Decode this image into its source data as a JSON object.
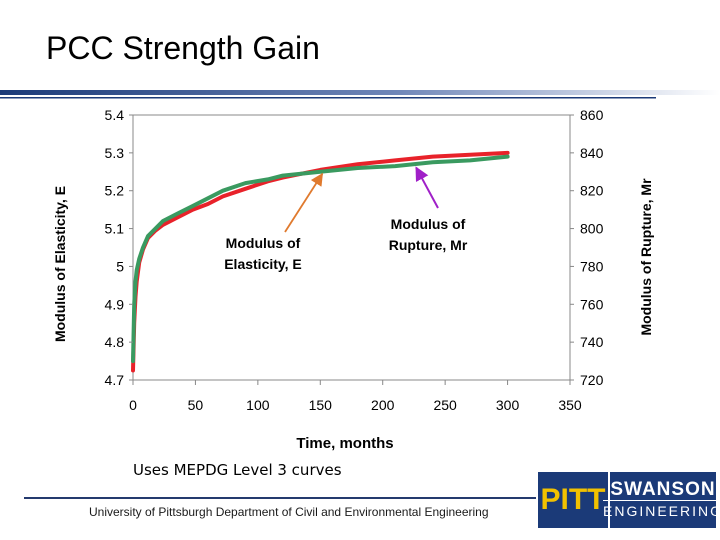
{
  "slide": {
    "title": "PCC Strength Gain",
    "footnote": "Uses MEPDG Level 3 curves",
    "footer": "University of Pittsburgh Department of Civil and Environmental Engineering"
  },
  "logo": {
    "left": "PITT",
    "top_right": "SWANSON",
    "bottom_right": "ENGINEERING"
  },
  "colors": {
    "rupture_series": "#e8222a",
    "elasticity_series": "#3a9a60",
    "elasticity_arrow": "#e07a2e",
    "rupture_arrow": "#a020c8",
    "logo_blue": "#1b3a78",
    "logo_gold": "#f2c100"
  },
  "chart_data": {
    "type": "line",
    "xlabel": "Time, months",
    "ylabel_left": "Modulus of Elasticity, E",
    "ylabel_right": "Modulus of Rupture, Mr",
    "xlim": [
      0,
      350
    ],
    "ylim_left": [
      4.7,
      5.4
    ],
    "ylim_right": [
      720,
      860
    ],
    "x_ticks": [
      "0",
      "50",
      "100",
      "150",
      "200",
      "250",
      "300",
      "350"
    ],
    "y_left_ticks": [
      "5.4",
      "5.3",
      "5.2",
      "5.1",
      "5",
      "4.9",
      "4.8",
      "4.7"
    ],
    "y_right_ticks": [
      "860",
      "840",
      "820",
      "800",
      "780",
      "760",
      "740",
      "720"
    ],
    "series": [
      {
        "name": "Modulus of Rupture, Mr",
        "axis": "right",
        "x": [
          0,
          1,
          2,
          3,
          5,
          8,
          12,
          18,
          24,
          36,
          48,
          60,
          72,
          90,
          108,
          120,
          150,
          180,
          210,
          240,
          270,
          300
        ],
        "y": [
          725,
          750,
          764,
          772,
          782,
          789,
          795,
          799,
          802,
          806,
          810,
          813,
          817,
          821,
          825,
          827,
          831,
          834,
          836,
          838,
          839,
          840
        ]
      },
      {
        "name": "Modulus of Elasticity, E",
        "axis": "left",
        "x": [
          0,
          1,
          2,
          3,
          5,
          8,
          12,
          18,
          24,
          36,
          48,
          60,
          72,
          90,
          108,
          120,
          150,
          180,
          210,
          240,
          270,
          300
        ],
        "y": [
          4.75,
          4.9,
          4.96,
          4.99,
          5.02,
          5.05,
          5.08,
          5.1,
          5.12,
          5.14,
          5.16,
          5.18,
          5.2,
          5.22,
          5.23,
          5.24,
          5.25,
          5.26,
          5.265,
          5.275,
          5.28,
          5.29
        ]
      }
    ],
    "annotations": [
      {
        "text_lines": [
          "Modulus of",
          "Elasticity, E"
        ],
        "series": "Modulus of Elasticity, E",
        "points_to_x": 150
      },
      {
        "text_lines": [
          "Modulus of",
          "Rupture, Mr"
        ],
        "series": "Modulus of Rupture, Mr",
        "points_to_x": 230
      }
    ]
  }
}
